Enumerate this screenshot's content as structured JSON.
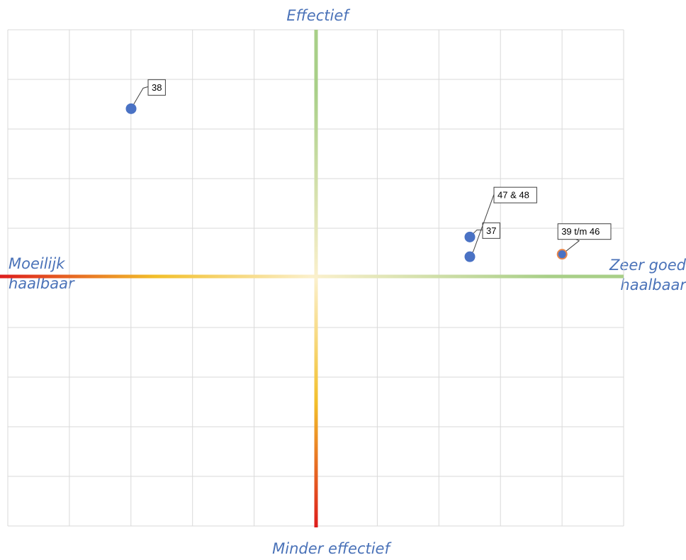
{
  "chart_data": {
    "type": "scatter",
    "title": "",
    "axis_labels": {
      "top": "Effectief",
      "bottom": "Minder effectief",
      "left": [
        "Moeilijk",
        "haalbaar"
      ],
      "right": [
        "Zeer goed",
        "haalbaar"
      ]
    },
    "xlim": [
      -5,
      5
    ],
    "ylim": [
      -5,
      5
    ],
    "grid": true,
    "x_gradient": [
      "#dd1c1c",
      "#f2bf2a",
      "#fbf0cc",
      "#a8cf88"
    ],
    "y_gradient": [
      "#dd1c1c",
      "#f2bf2a",
      "#fbf0cc",
      "#a8cf88"
    ],
    "points": [
      {
        "label": "38",
        "x": -3.0,
        "y": 3.4,
        "color": "#4a72c4",
        "edge": "#4a72c4"
      },
      {
        "label": "37",
        "x": 2.5,
        "y": 0.8,
        "color": "#4a72c4",
        "edge": "#4a72c4"
      },
      {
        "label": "47 & 48",
        "x": 2.5,
        "y": 0.4,
        "color": "#4a72c4",
        "edge": "#4a72c4"
      },
      {
        "label": "39 t/m 46",
        "x": 4.0,
        "y": 0.45,
        "color": "#4a72c4",
        "edge": "#e8864b"
      }
    ]
  }
}
